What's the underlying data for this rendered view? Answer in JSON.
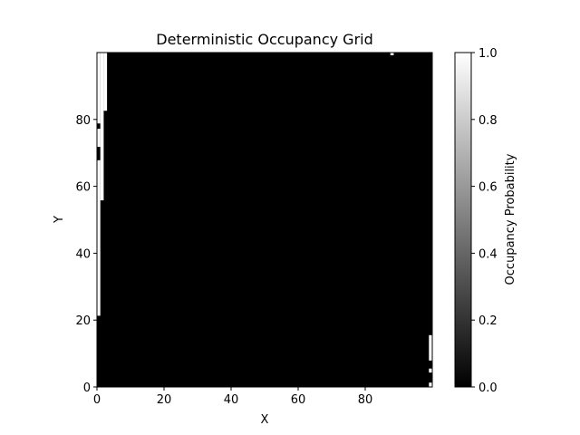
{
  "chart_data": {
    "type": "heatmap",
    "title": "Deterministic Occupancy Grid",
    "xlabel": "X",
    "ylabel": "Y",
    "xlim": [
      0,
      100
    ],
    "ylim": [
      0,
      100
    ],
    "x_ticks": [
      0,
      20,
      40,
      60,
      80
    ],
    "y_ticks": [
      0,
      20,
      40,
      60,
      80
    ],
    "grid": false,
    "colormap": "gray",
    "background_value": 0.0,
    "colorbar": {
      "label": "Occupancy Probability",
      "range": [
        0.0,
        1.0
      ],
      "ticks": [
        "0.0",
        "0.2",
        "0.4",
        "0.6",
        "0.8",
        "1.0"
      ],
      "low_color": "#000000",
      "high_color": "#ffffff"
    },
    "occupied_regions": [
      {
        "x0": 0,
        "x1": 1,
        "y0": 21.3,
        "y1": 67.8,
        "value": 1.0
      },
      {
        "x0": 0,
        "x1": 1,
        "y0": 71.8,
        "y1": 77.2,
        "value": 1.0
      },
      {
        "x0": 0,
        "x1": 1,
        "y0": 78.8,
        "y1": 100,
        "value": 1.0
      },
      {
        "x0": 1,
        "x1": 2,
        "y0": 55.8,
        "y1": 100,
        "value": 1.0
      },
      {
        "x0": 2,
        "x1": 3,
        "y0": 82.6,
        "y1": 100,
        "value": 1.0
      },
      {
        "x0": 87.5,
        "x1": 88.5,
        "y0": 99.2,
        "y1": 100,
        "value": 1.0
      },
      {
        "x0": 99,
        "x1": 100,
        "y0": 7.9,
        "y1": 15.5,
        "value": 1.0
      },
      {
        "x0": 99,
        "x1": 100,
        "y0": 4.3,
        "y1": 5.5,
        "value": 1.0
      },
      {
        "x0": 99,
        "x1": 100,
        "y0": 0,
        "y1": 1.3,
        "value": 1.0
      }
    ]
  }
}
